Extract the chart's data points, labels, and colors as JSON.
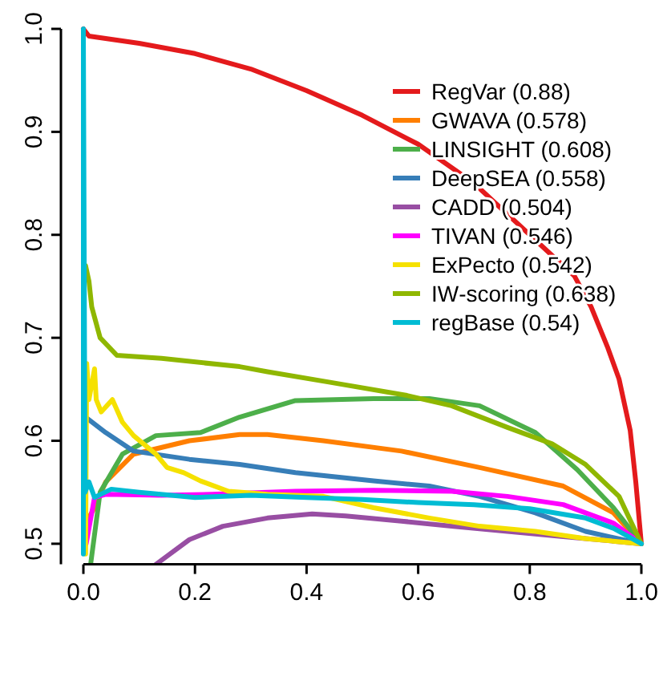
{
  "chart_data": {
    "type": "line",
    "xlim": [
      0,
      1
    ],
    "ylim": [
      0.48,
      1.0
    ],
    "xticks": [
      {
        "value": 0,
        "label": "0.0"
      },
      {
        "value": 0.2,
        "label": "0.2"
      },
      {
        "value": 0.4,
        "label": "0.4"
      },
      {
        "value": 0.6,
        "label": "0.6"
      },
      {
        "value": 0.8,
        "label": "0.8"
      },
      {
        "value": 1,
        "label": "1.0"
      }
    ],
    "yticks": [
      {
        "value": 0.5,
        "label": "0.5"
      },
      {
        "value": 0.6,
        "label": "0.6"
      },
      {
        "value": 0.7,
        "label": "0.7"
      },
      {
        "value": 0.8,
        "label": "0.8"
      },
      {
        "value": 0.9,
        "label": "0.9"
      },
      {
        "value": 1,
        "label": "1.0"
      }
    ],
    "grid": false,
    "legend": "top right",
    "marker": "none",
    "line_style": "solid",
    "series": [
      {
        "name": "RegVar (0.88)",
        "color": "#e41a1c",
        "x": [
          0,
          0.01,
          0.1,
          0.2,
          0.3,
          0.4,
          0.5,
          0.6,
          0.7,
          0.8,
          0.84,
          0.88,
          0.91,
          0.94,
          0.96,
          0.98,
          0.99,
          1.0
        ],
        "values": [
          1.0,
          0.993,
          0.986,
          0.976,
          0.961,
          0.94,
          0.916,
          0.888,
          0.85,
          0.8,
          0.78,
          0.76,
          0.73,
          0.69,
          0.66,
          0.61,
          0.56,
          0.5
        ]
      },
      {
        "name": "GWAVA (0.578)",
        "color": "#ff7f00",
        "x": [
          0,
          0.004,
          0.02,
          0.04,
          0.09,
          0.19,
          0.28,
          0.33,
          0.43,
          0.57,
          0.71,
          0.86,
          0.95,
          1.0
        ],
        "values": [
          0.5,
          0.52,
          0.535,
          0.56,
          0.587,
          0.6,
          0.606,
          0.606,
          0.6,
          0.59,
          0.574,
          0.556,
          0.53,
          0.5
        ]
      },
      {
        "name": "LINSIGHT (0.608)",
        "color": "#4daf4a",
        "x": [
          0.013,
          0.03,
          0.07,
          0.13,
          0.21,
          0.28,
          0.38,
          0.52,
          0.62,
          0.71,
          0.81,
          0.885,
          0.95,
          1.0
        ],
        "values": [
          0.48,
          0.55,
          0.587,
          0.605,
          0.608,
          0.623,
          0.639,
          0.641,
          0.641,
          0.634,
          0.608,
          0.572,
          0.535,
          0.5
        ]
      },
      {
        "name": "DeepSEA (0.558)",
        "color": "#377eb8",
        "x": [
          0,
          0.004,
          0.04,
          0.09,
          0.19,
          0.28,
          0.38,
          0.52,
          0.62,
          0.71,
          0.81,
          0.9,
          1.0
        ],
        "values": [
          0.5,
          0.623,
          0.608,
          0.59,
          0.582,
          0.577,
          0.569,
          0.561,
          0.556,
          0.546,
          0.53,
          0.512,
          0.5
        ]
      },
      {
        "name": "CADD (0.504)",
        "color": "#984ea3",
        "x": [
          0.13,
          0.19,
          0.25,
          0.33,
          0.41,
          0.47,
          0.57,
          0.66,
          0.76,
          0.86,
          1.0
        ],
        "values": [
          0.48,
          0.504,
          0.517,
          0.525,
          0.529,
          0.527,
          0.522,
          0.517,
          0.512,
          0.507,
          0.5
        ]
      },
      {
        "name": "TIVAN (0.546)",
        "color": "#ff00ff",
        "x": [
          0.005,
          0.02,
          0.04,
          0.14,
          0.23,
          0.38,
          0.52,
          0.66,
          0.76,
          0.86,
          0.95,
          1.0
        ],
        "values": [
          0.5,
          0.545,
          0.548,
          0.547,
          0.548,
          0.551,
          0.552,
          0.551,
          0.546,
          0.538,
          0.52,
          0.5
        ]
      },
      {
        "name": "ExPecto (0.542)",
        "color": "#f5e100",
        "x": [
          0.004,
          0.006,
          0.01,
          0.02,
          0.023,
          0.032,
          0.052,
          0.07,
          0.09,
          0.13,
          0.15,
          0.18,
          0.21,
          0.26,
          0.33,
          0.43,
          0.52,
          0.62,
          0.71,
          0.81,
          0.9,
          1.0
        ],
        "values": [
          0.49,
          0.675,
          0.64,
          0.67,
          0.64,
          0.628,
          0.64,
          0.618,
          0.605,
          0.587,
          0.574,
          0.569,
          0.561,
          0.551,
          0.548,
          0.546,
          0.535,
          0.525,
          0.517,
          0.512,
          0.505,
          0.5
        ]
      },
      {
        "name": "IW‑scoring (0.638)",
        "color": "#8fb700",
        "x": [
          0.004,
          0.01,
          0.015,
          0.03,
          0.06,
          0.14,
          0.28,
          0.33,
          0.44,
          0.58,
          0.66,
          0.76,
          0.84,
          0.9,
          0.96,
          1.0
        ],
        "values": [
          0.77,
          0.755,
          0.73,
          0.7,
          0.683,
          0.68,
          0.672,
          0.667,
          0.657,
          0.644,
          0.634,
          0.613,
          0.597,
          0.577,
          0.546,
          0.5
        ]
      },
      {
        "name": "regBase (0.54)",
        "color": "#00bcd4",
        "x": [
          0,
          0,
          0.003,
          0.01,
          0.02,
          0.05,
          0.1,
          0.2,
          0.3,
          0.4,
          0.5,
          0.6,
          0.7,
          0.8,
          0.9,
          0.95,
          1.0
        ],
        "values": [
          0.49,
          1.0,
          0.55,
          0.56,
          0.545,
          0.553,
          0.55,
          0.545,
          0.547,
          0.545,
          0.543,
          0.54,
          0.538,
          0.534,
          0.525,
          0.515,
          0.5
        ]
      }
    ]
  }
}
